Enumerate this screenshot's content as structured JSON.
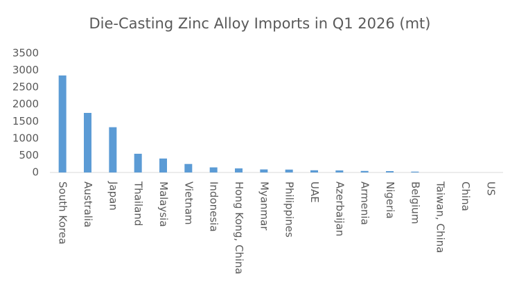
{
  "chart_data": {
    "type": "bar",
    "title": "Die-Casting Zinc Alloy Imports in Q1 2026 (mt)",
    "categories": [
      "South Korea",
      "Australia",
      "Japan",
      "Thailand",
      "Malaysia",
      "Vietnam",
      "Indonesia",
      "Hong Kong, China",
      "Myanmar",
      "Philippines",
      "UAE",
      "Azerbaijan",
      "Armenia",
      "Nigeria",
      "Belgium",
      "Taiwan, China",
      "China",
      "US"
    ],
    "values": [
      2850,
      1750,
      1330,
      550,
      410,
      250,
      150,
      120,
      90,
      85,
      65,
      60,
      45,
      40,
      25,
      0,
      0,
      0
    ],
    "color": "#5b9bd5",
    "ylim": [
      0,
      3500
    ],
    "yticks": [
      0,
      500,
      1000,
      1500,
      2000,
      2500,
      3000,
      3500
    ],
    "grid": false
  }
}
